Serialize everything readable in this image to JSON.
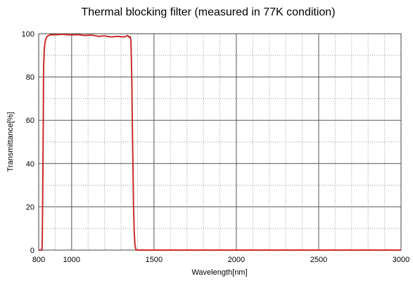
{
  "chart_data": {
    "type": "line",
    "title": "Thermal blocking filter (measured in 77K condition)",
    "xlabel": "Wavelength[nm]",
    "ylabel": "Transmittance[%]",
    "xlim": [
      800,
      3000
    ],
    "ylim": [
      0,
      100
    ],
    "x_ticks": [
      800,
      1000,
      1500,
      2000,
      2500,
      3000
    ],
    "x_tick_labels": [
      "800",
      "1000",
      "1500",
      "2000",
      "2500",
      "3000"
    ],
    "y_ticks": [
      0,
      20,
      40,
      60,
      80,
      100
    ],
    "y_tick_labels": [
      "0",
      "20",
      "40",
      "60",
      "80",
      "100"
    ],
    "grid": true,
    "colors": {
      "line": "#cc2a2a",
      "grid_major": "#555555",
      "grid_minor": "#999999"
    },
    "series": [
      {
        "name": "",
        "x": [
          800,
          820,
          822,
          826,
          830,
          834,
          838,
          845,
          855,
          870,
          900,
          940,
          980,
          1000,
          1040,
          1080,
          1120,
          1160,
          1200,
          1240,
          1280,
          1320,
          1340,
          1350,
          1355,
          1360,
          1365,
          1368,
          1372,
          1376,
          1380,
          1385,
          1390,
          1400,
          1450,
          1500,
          2000,
          2500,
          3000
        ],
        "y": [
          0,
          0,
          5,
          40,
          85,
          93,
          96,
          98,
          99,
          99.5,
          99.5,
          99.7,
          99.5,
          99.4,
          99.6,
          99.2,
          99.4,
          98.8,
          99.0,
          98.5,
          98.8,
          98.5,
          99.2,
          98.3,
          98.7,
          97.0,
          80,
          60,
          40,
          20,
          8,
          2,
          0.3,
          0,
          0,
          0,
          0,
          0,
          0
        ]
      }
    ]
  }
}
